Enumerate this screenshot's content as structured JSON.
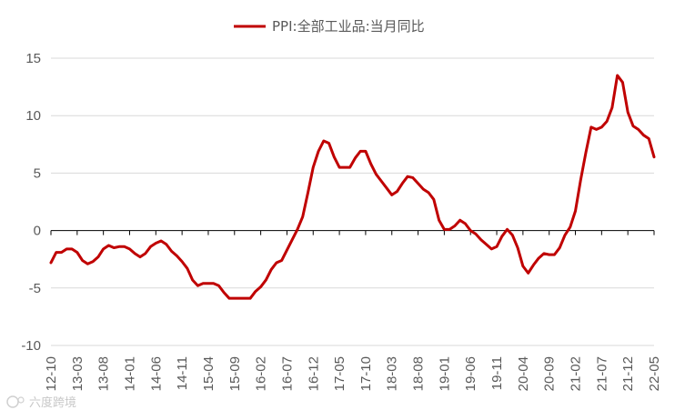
{
  "watermark": "六度跨境",
  "chart_data": {
    "type": "line",
    "title": "",
    "xlabel": "",
    "ylabel": "",
    "ylim": [
      -10,
      15
    ],
    "yticks": [
      -10,
      -5,
      0,
      5,
      10,
      15
    ],
    "grid": true,
    "legend_position": "top",
    "series_color": "#C00000",
    "x_tick_labels": [
      "12-10",
      "13-03",
      "13-08",
      "14-01",
      "14-06",
      "14-11",
      "15-04",
      "15-09",
      "16-02",
      "16-07",
      "16-12",
      "17-05",
      "17-10",
      "18-03",
      "18-08",
      "19-01",
      "19-06",
      "19-11",
      "20-04",
      "20-09",
      "21-02",
      "21-07",
      "21-12",
      "22-05"
    ],
    "series": [
      {
        "name": "PPI:全部工业品:当月同比",
        "start": "2012-10",
        "end": "2022-05",
        "values": [
          -2.8,
          -1.9,
          -1.9,
          -1.6,
          -1.6,
          -1.9,
          -2.6,
          -2.9,
          -2.7,
          -2.3,
          -1.6,
          -1.3,
          -1.5,
          -1.4,
          -1.4,
          -1.6,
          -2.0,
          -2.3,
          -2.0,
          -1.4,
          -1.1,
          -0.9,
          -1.2,
          -1.8,
          -2.2,
          -2.7,
          -3.3,
          -4.3,
          -4.8,
          -4.6,
          -4.6,
          -4.6,
          -4.8,
          -5.4,
          -5.9,
          -5.9,
          -5.9,
          -5.9,
          -5.9,
          -5.3,
          -4.9,
          -4.3,
          -3.4,
          -2.8,
          -2.6,
          -1.7,
          -0.8,
          0.1,
          1.2,
          3.3,
          5.5,
          6.9,
          7.8,
          7.6,
          6.4,
          5.5,
          5.5,
          5.5,
          6.3,
          6.9,
          6.9,
          5.8,
          4.9,
          4.3,
          3.7,
          3.1,
          3.4,
          4.1,
          4.7,
          4.6,
          4.1,
          3.6,
          3.3,
          2.7,
          0.9,
          0.1,
          0.1,
          0.4,
          0.9,
          0.6,
          0.0,
          -0.3,
          -0.8,
          -1.2,
          -1.6,
          -1.4,
          -0.5,
          0.1,
          -0.4,
          -1.5,
          -3.1,
          -3.7,
          -3.0,
          -2.4,
          -2.0,
          -2.1,
          -2.1,
          -1.5,
          -0.4,
          0.3,
          1.7,
          4.4,
          6.8,
          9.0,
          8.8,
          9.0,
          9.5,
          10.7,
          13.5,
          12.9,
          10.3,
          9.1,
          8.8,
          8.3,
          8.0,
          6.4
        ]
      }
    ]
  }
}
